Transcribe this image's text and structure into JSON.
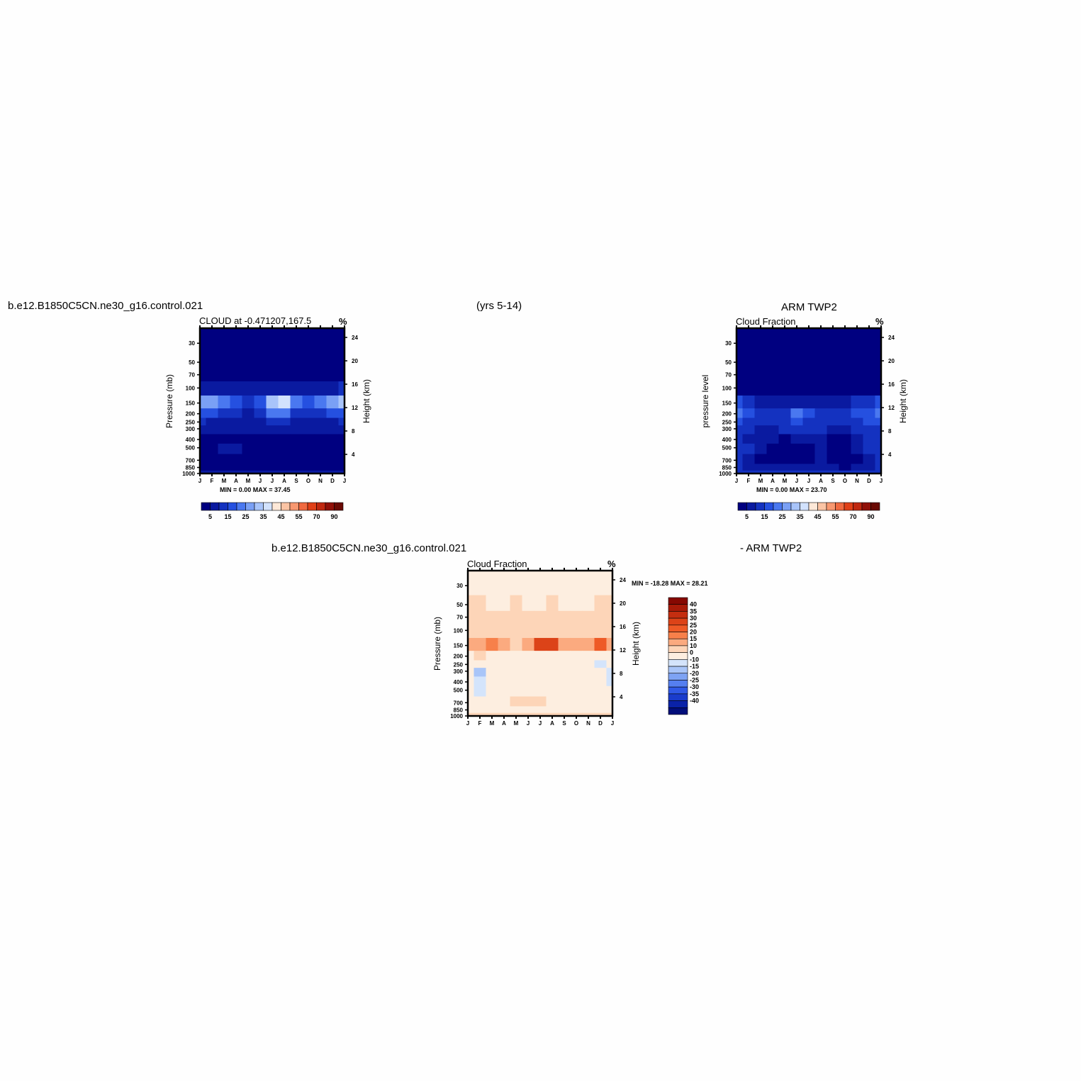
{
  "header": {
    "case_name": "b.e12.B1850C5CN.ne30_g16.control.021",
    "years": "(yrs 5-14)",
    "obs_name": "ARM TWP2",
    "diff_case": "b.e12.B1850C5CN.ne30_g16.control.021",
    "diff_obs": "- ARM TWP2"
  },
  "chart_data": [
    {
      "type": "heatmap",
      "title": "CLOUD at -0.471207,167.5",
      "units": "%",
      "ylabel": "Pressure (mb)",
      "ylabel_right": "Height (km)",
      "x_ticks": [
        "J",
        "F",
        "M",
        "A",
        "M",
        "J",
        "J",
        "A",
        "S",
        "O",
        "N",
        "D",
        "J"
      ],
      "y_ticks": [
        "30",
        "50",
        "70",
        "100",
        "150",
        "200",
        "250",
        "300",
        "400",
        "500",
        "700",
        "850",
        "1000"
      ],
      "height_ticks": [
        "24",
        "20",
        "16",
        "12",
        "8",
        "4"
      ],
      "min_max_text": "MIN =   0.00 MAX =  37.45",
      "colorbar_labels": [
        "5",
        "15",
        "25",
        "35",
        "45",
        "55",
        "70",
        "90"
      ],
      "colorbar_colors": [
        "#000080",
        "#0a1aa0",
        "#1432c0",
        "#2550e0",
        "#4a78f0",
        "#7aa0f5",
        "#a8c4fa",
        "#d2e2fd",
        "#fde8d8",
        "#fbc4a4",
        "#f89870",
        "#f06a40",
        "#e04018",
        "#c02810",
        "#901008",
        "#6a0a04"
      ],
      "z": [
        [
          0,
          0,
          0,
          0,
          0,
          0,
          0,
          0,
          0,
          0,
          0,
          0,
          0
        ],
        [
          0,
          0,
          0,
          0,
          0,
          0,
          0,
          0,
          0,
          0,
          0,
          0,
          0
        ],
        [
          1,
          1,
          1,
          1,
          0,
          0,
          1,
          0,
          0,
          0,
          1,
          1,
          1
        ],
        [
          9,
          8,
          7,
          6,
          5,
          6,
          8,
          9,
          6,
          5,
          7,
          9,
          10
        ],
        [
          28,
          26,
          20,
          16,
          14,
          18,
          32,
          37,
          22,
          16,
          20,
          28,
          30
        ],
        [
          18,
          16,
          12,
          10,
          9,
          12,
          20,
          22,
          14,
          10,
          12,
          16,
          18
        ],
        [
          10,
          9,
          8,
          7,
          7,
          8,
          11,
          12,
          8,
          7,
          8,
          9,
          10
        ],
        [
          7,
          6,
          6,
          5,
          5,
          6,
          8,
          9,
          6,
          5,
          6,
          7,
          7
        ],
        [
          3,
          2,
          2,
          2,
          3,
          3,
          4,
          2,
          1,
          1,
          2,
          3,
          3
        ],
        [
          3,
          4,
          5,
          5,
          3,
          4,
          4,
          1,
          0,
          0,
          1,
          2,
          3
        ],
        [
          1,
          1,
          2,
          1,
          1,
          3,
          4,
          1,
          0,
          0,
          1,
          1,
          1
        ],
        [
          1,
          1,
          1,
          1,
          1,
          1,
          2,
          1,
          0,
          0,
          1,
          1,
          1
        ],
        [
          6,
          6,
          6,
          6,
          6,
          6,
          6,
          6,
          6,
          6,
          6,
          6,
          6
        ]
      ]
    },
    {
      "type": "heatmap",
      "title": "Cloud Fraction",
      "units": "%",
      "ylabel": "pressure level",
      "ylabel_right": "Height (km)",
      "x_ticks": [
        "J",
        "F",
        "M",
        "A",
        "M",
        "J",
        "J",
        "A",
        "S",
        "O",
        "N",
        "D",
        "J"
      ],
      "y_ticks": [
        "30",
        "50",
        "70",
        "100",
        "150",
        "200",
        "250",
        "300",
        "400",
        "500",
        "700",
        "850",
        "1000"
      ],
      "height_ticks": [
        "24",
        "20",
        "16",
        "12",
        "8",
        "4"
      ],
      "min_max_text": "MIN =   0.00 MAX =  23.70",
      "colorbar_labels": [
        "5",
        "15",
        "25",
        "35",
        "45",
        "55",
        "70",
        "90"
      ],
      "colorbar_colors": [
        "#000080",
        "#0a1aa0",
        "#1432c0",
        "#2550e0",
        "#4a78f0",
        "#7aa0f5",
        "#a8c4fa",
        "#d2e2fd",
        "#fde8d8",
        "#fbc4a4",
        "#f89870",
        "#f06a40",
        "#e04018",
        "#c02810",
        "#901008",
        "#6a0a04"
      ],
      "z": [
        [
          0,
          0,
          0,
          0,
          0,
          0,
          0,
          0,
          0,
          0,
          0,
          0,
          0
        ],
        [
          0,
          0,
          0,
          0,
          0,
          0,
          0,
          0,
          0,
          0,
          0,
          0,
          0
        ],
        [
          0,
          0,
          0,
          0,
          0,
          0,
          0,
          0,
          0,
          0,
          0,
          0,
          0
        ],
        [
          3,
          2,
          1,
          1,
          1,
          1,
          1,
          1,
          1,
          2,
          2,
          3,
          4
        ],
        [
          16,
          10,
          8,
          7,
          8,
          9,
          8,
          8,
          6,
          7,
          10,
          13,
          15
        ],
        [
          20,
          16,
          14,
          12,
          14,
          22,
          16,
          12,
          12,
          14,
          16,
          18,
          20
        ],
        [
          18,
          14,
          12,
          12,
          14,
          16,
          14,
          12,
          12,
          12,
          14,
          16,
          17
        ],
        [
          14,
          10,
          8,
          9,
          10,
          11,
          10,
          10,
          8,
          8,
          10,
          12,
          13
        ],
        [
          12,
          8,
          6,
          5,
          4,
          5,
          6,
          6,
          4,
          4,
          8,
          10,
          12
        ],
        [
          14,
          10,
          6,
          4,
          4,
          4,
          4,
          5,
          3,
          3,
          6,
          10,
          12
        ],
        [
          12,
          8,
          4,
          2,
          3,
          3,
          4,
          6,
          2,
          2,
          4,
          8,
          10
        ],
        [
          10,
          8,
          6,
          6,
          6,
          6,
          6,
          6,
          5,
          4,
          6,
          8,
          10
        ],
        [
          14,
          14,
          14,
          14,
          14,
          14,
          14,
          14,
          14,
          14,
          14,
          14,
          14
        ]
      ]
    },
    {
      "type": "heatmap",
      "title": "Cloud Fraction",
      "units": "%",
      "ylabel": "Pressure (mb)",
      "ylabel_right": "Height (km)",
      "x_ticks": [
        "J",
        "F",
        "M",
        "A",
        "M",
        "J",
        "J",
        "A",
        "S",
        "O",
        "N",
        "D",
        "J"
      ],
      "y_ticks": [
        "30",
        "50",
        "70",
        "100",
        "150",
        "200",
        "250",
        "300",
        "400",
        "500",
        "700",
        "850",
        "1000"
      ],
      "height_ticks": [
        "24",
        "20",
        "16",
        "12",
        "8",
        "4"
      ],
      "min_max_text": "MIN = -18.28 MAX =  28.21",
      "colorbar_labels": [
        "40",
        "35",
        "30",
        "25",
        "20",
        "15",
        "10",
        "0",
        "-10",
        "-15",
        "-20",
        "-25",
        "-30",
        "-35",
        "-40"
      ],
      "colorbar_colors": [
        "#860802",
        "#a81a08",
        "#c42e10",
        "#dc4318",
        "#ee5a26",
        "#f7804a",
        "#fbaa7f",
        "#fdd5b8",
        "#fdeee0",
        "#d4e4fb",
        "#a9c5f8",
        "#7ea3f4",
        "#557ff0",
        "#3059e6",
        "#1a3ccc",
        "#0a22a8",
        "#020e7a"
      ],
      "z": [
        [
          -3,
          -3,
          -3,
          -3,
          -3,
          -3,
          -3,
          -3,
          -3,
          -3,
          -3,
          -3,
          -3
        ],
        [
          1,
          1,
          -2,
          -2,
          1,
          -2,
          -2,
          1,
          -2,
          -2,
          -2,
          1,
          1
        ],
        [
          3,
          3,
          1,
          1,
          2,
          1,
          1,
          2,
          1,
          1,
          2,
          3,
          3
        ],
        [
          8,
          8,
          7,
          6,
          5,
          6,
          8,
          9,
          6,
          5,
          6,
          8,
          8
        ],
        [
          12,
          14,
          18,
          11,
          8,
          10,
          26,
          28,
          14,
          10,
          12,
          20,
          14
        ],
        [
          -2,
          1,
          -2,
          -3,
          -4,
          -3,
          -3,
          -3,
          -3,
          -3,
          -3,
          -3,
          -3
        ],
        [
          -4,
          -3,
          -3,
          -3,
          -3,
          -3,
          -3,
          -3,
          -3,
          -3,
          -3,
          -12,
          -8
        ],
        [
          -10,
          -18,
          -5,
          -4,
          -4,
          -4,
          -4,
          -4,
          -4,
          -4,
          -4,
          -10,
          -12
        ],
        [
          -10,
          -12,
          -4,
          -3,
          -3,
          -3,
          -3,
          -3,
          -3,
          -3,
          -3,
          -6,
          -12
        ],
        [
          -9,
          -12,
          -4,
          -3,
          -3,
          -3,
          -3,
          -3,
          -3,
          -3,
          -3,
          -5,
          -8
        ],
        [
          -7,
          -6,
          -3,
          -3,
          2,
          2,
          3,
          -3,
          -3,
          -3,
          -3,
          -3,
          -5
        ],
        [
          -6,
          -6,
          -3,
          -3,
          -3,
          -3,
          -3,
          -3,
          -3,
          -3,
          -3,
          -3,
          -3
        ],
        [
          3,
          3,
          3,
          3,
          3,
          3,
          3,
          3,
          3,
          3,
          3,
          3,
          3
        ]
      ]
    }
  ]
}
